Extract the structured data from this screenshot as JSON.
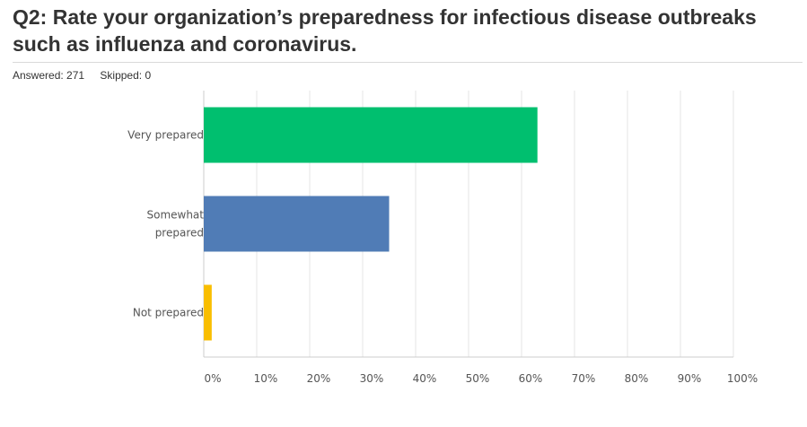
{
  "title": "Q2: Rate your organization’s preparedness for infectious disease outbreaks such as influenza and coronavirus.",
  "stats": {
    "answered": "Answered: 271",
    "skipped": "Skipped: 0"
  },
  "chart_data": {
    "type": "bar",
    "orientation": "horizontal",
    "categories": [
      [
        "Very prepared"
      ],
      [
        "Somewhat",
        "prepared"
      ],
      [
        "Not prepared"
      ]
    ],
    "values": [
      63,
      35,
      1.5
    ],
    "colors": [
      "#00bf6f",
      "#507cb6",
      "#f9be00"
    ],
    "xlim": [
      0,
      100
    ],
    "xticks": [
      "0%",
      "10%",
      "20%",
      "30%",
      "40%",
      "50%",
      "60%",
      "70%",
      "80%",
      "90%",
      "100%"
    ],
    "grid": true
  }
}
